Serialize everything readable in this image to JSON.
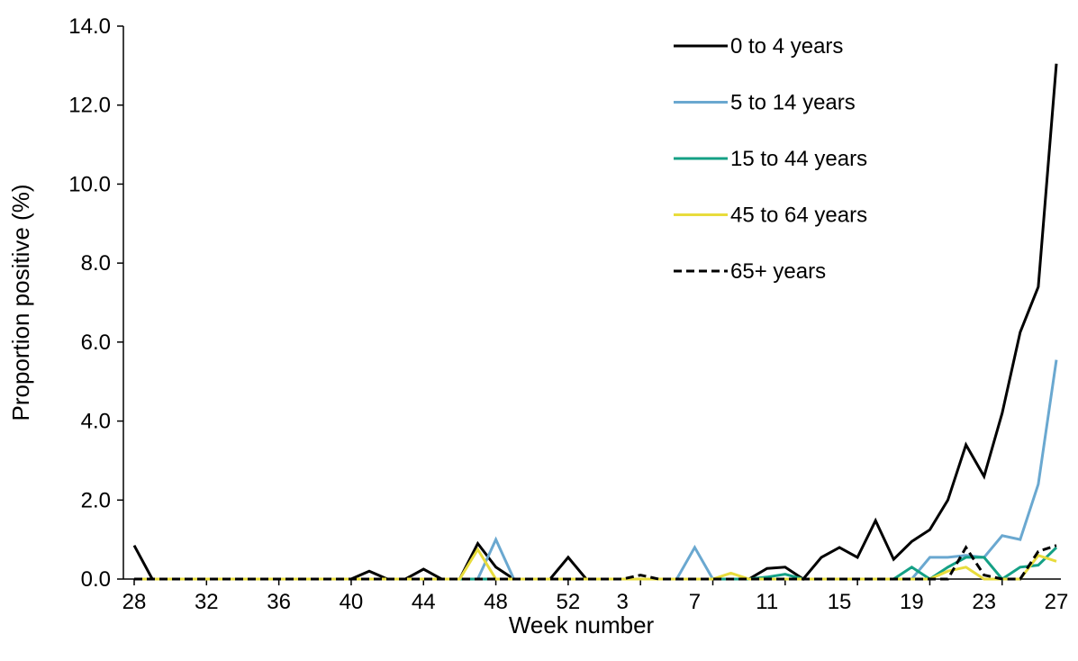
{
  "chart_data": {
    "type": "line",
    "xlabel": "Week number",
    "ylabel": "Proportion positive (%)",
    "ylim": [
      0,
      14
    ],
    "y_ticks": [
      "0.0",
      "2.0",
      "4.0",
      "6.0",
      "8.0",
      "10.0",
      "12.0",
      "14.0"
    ],
    "x_tick_labels": [
      "28",
      "32",
      "36",
      "40",
      "44",
      "48",
      "52",
      "3",
      "7",
      "11",
      "15",
      "19",
      "23",
      "27"
    ],
    "x": [
      "28",
      "29",
      "30",
      "31",
      "32",
      "33",
      "34",
      "35",
      "36",
      "37",
      "38",
      "39",
      "40",
      "41",
      "42",
      "43",
      "44",
      "45",
      "46",
      "47",
      "48",
      "49",
      "50",
      "51",
      "52",
      "1",
      "2",
      "3",
      "4",
      "5",
      "6",
      "7",
      "8",
      "9",
      "10",
      "11",
      "12",
      "13",
      "14",
      "15",
      "16",
      "17",
      "18",
      "19",
      "20",
      "21",
      "22",
      "23",
      "24",
      "25",
      "26",
      "27"
    ],
    "legend_position": "top-right",
    "grid": false,
    "series": [
      {
        "name": "0 to 4 years",
        "color": "#000000",
        "dash": false,
        "values": [
          0.85,
          0,
          0,
          0,
          0,
          0,
          0,
          0,
          0,
          0,
          0,
          0,
          0,
          0.2,
          0,
          0,
          0.25,
          0,
          0,
          0.9,
          0.3,
          0,
          0,
          0,
          0.55,
          0,
          0,
          0,
          0,
          0,
          0,
          0,
          0,
          0,
          0,
          0.27,
          0.3,
          0,
          0.55,
          0.8,
          0.55,
          1.48,
          0.5,
          0.95,
          1.25,
          2.0,
          3.4,
          2.6,
          4.2,
          6.25,
          7.4,
          13.05
        ]
      },
      {
        "name": "5 to 14 years",
        "color": "#6aa8d0",
        "dash": false,
        "values": [
          0,
          0,
          0,
          0,
          0,
          0,
          0,
          0,
          0,
          0,
          0,
          0,
          0,
          0,
          0,
          0,
          0,
          0,
          0,
          0,
          1.0,
          0,
          0,
          0,
          0,
          0,
          0,
          0,
          0,
          0,
          0,
          0.8,
          0,
          0,
          0,
          0,
          0,
          0,
          0,
          0,
          0,
          0,
          0,
          0,
          0.55,
          0.55,
          0.6,
          0.55,
          1.1,
          1.0,
          2.4,
          5.55
        ]
      },
      {
        "name": "15 to 44 years",
        "color": "#14a085",
        "dash": false,
        "values": [
          0,
          0,
          0,
          0,
          0,
          0,
          0,
          0,
          0,
          0,
          0,
          0,
          0,
          0,
          0,
          0,
          0,
          0,
          0,
          0,
          0,
          0,
          0,
          0,
          0,
          0,
          0,
          0,
          0,
          0,
          0,
          0,
          0,
          0,
          0,
          0.05,
          0.12,
          0,
          0,
          0,
          0,
          0,
          0,
          0.3,
          0,
          0.3,
          0.55,
          0.55,
          0,
          0.3,
          0.35,
          0.8
        ]
      },
      {
        "name": "45 to 64 years",
        "color": "#e8dc3c",
        "dash": false,
        "values": [
          0,
          0,
          0,
          0,
          0,
          0,
          0,
          0,
          0,
          0,
          0,
          0,
          0,
          0,
          0,
          0,
          0,
          0,
          0,
          0.75,
          0,
          0,
          0,
          0,
          0,
          0,
          0,
          0,
          0,
          0,
          0,
          0,
          0,
          0.15,
          0,
          0,
          0,
          0,
          0,
          0,
          0,
          0,
          0,
          0,
          0,
          0.2,
          0.3,
          0,
          0,
          0,
          0.6,
          0.45
        ]
      },
      {
        "name": "65+ years",
        "color": "#000000",
        "dash": true,
        "values": [
          0,
          0,
          0,
          0,
          0,
          0,
          0,
          0,
          0,
          0,
          0,
          0,
          0,
          0,
          0,
          0,
          0,
          0,
          0,
          0,
          0,
          0,
          0,
          0,
          0,
          0,
          0,
          0,
          0.1,
          0,
          0,
          0,
          0,
          0,
          0,
          0,
          0,
          0,
          0,
          0,
          0,
          0,
          0,
          0,
          0,
          0,
          0.8,
          0.1,
          0,
          0,
          0.7,
          0.85
        ]
      }
    ]
  }
}
